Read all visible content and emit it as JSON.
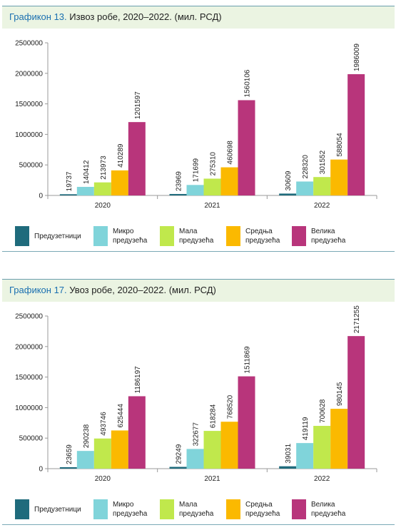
{
  "chart_data": [
    {
      "type": "bar",
      "label": "Графикон 13.",
      "title": "Извоз робе, 2020–2022. (мил. РСД)",
      "categories": [
        "2020",
        "2021",
        "2022"
      ],
      "ylim": [
        0,
        2500000
      ],
      "yticks": [
        0,
        500000,
        1000000,
        1500000,
        2000000,
        2500000
      ],
      "series": [
        {
          "name": "Предузетници",
          "color": "#1f6b7c",
          "values": [
            19737,
            23969,
            30609
          ]
        },
        {
          "name": "Микро предузећа",
          "color": "#80d4da",
          "values": [
            140412,
            171699,
            228320
          ]
        },
        {
          "name": "Мала предузећа",
          "color": "#c0e84c",
          "values": [
            213973,
            275310,
            301552
          ]
        },
        {
          "name": "Средња предузећа",
          "color": "#fbb900",
          "values": [
            410289,
            460698,
            588054
          ]
        },
        {
          "name": "Велика предузећа",
          "color": "#b8357b",
          "values": [
            1201597,
            1560106,
            1986009
          ]
        }
      ]
    },
    {
      "type": "bar",
      "label": "Графикон 17.",
      "title": "Увоз робе, 2020–2022. (мил. РСД)",
      "categories": [
        "2020",
        "2021",
        "2022"
      ],
      "ylim": [
        0,
        2500000
      ],
      "yticks": [
        0,
        500000,
        1000000,
        1500000,
        2000000,
        2500000
      ],
      "series": [
        {
          "name": "Предузетници",
          "color": "#1f6b7c",
          "values": [
            23659,
            29249,
            39031
          ]
        },
        {
          "name": "Микро предузећа",
          "color": "#80d4da",
          "values": [
            290238,
            322677,
            419119
          ]
        },
        {
          "name": "Мала предузећа",
          "color": "#c0e84c",
          "values": [
            493746,
            618284,
            700628
          ]
        },
        {
          "name": "Средња предузећа",
          "color": "#fbb900",
          "values": [
            625444,
            768520,
            980145
          ]
        },
        {
          "name": "Велика предузећа",
          "color": "#b8357b",
          "values": [
            1186197,
            1511869,
            2171255
          ]
        }
      ]
    }
  ]
}
